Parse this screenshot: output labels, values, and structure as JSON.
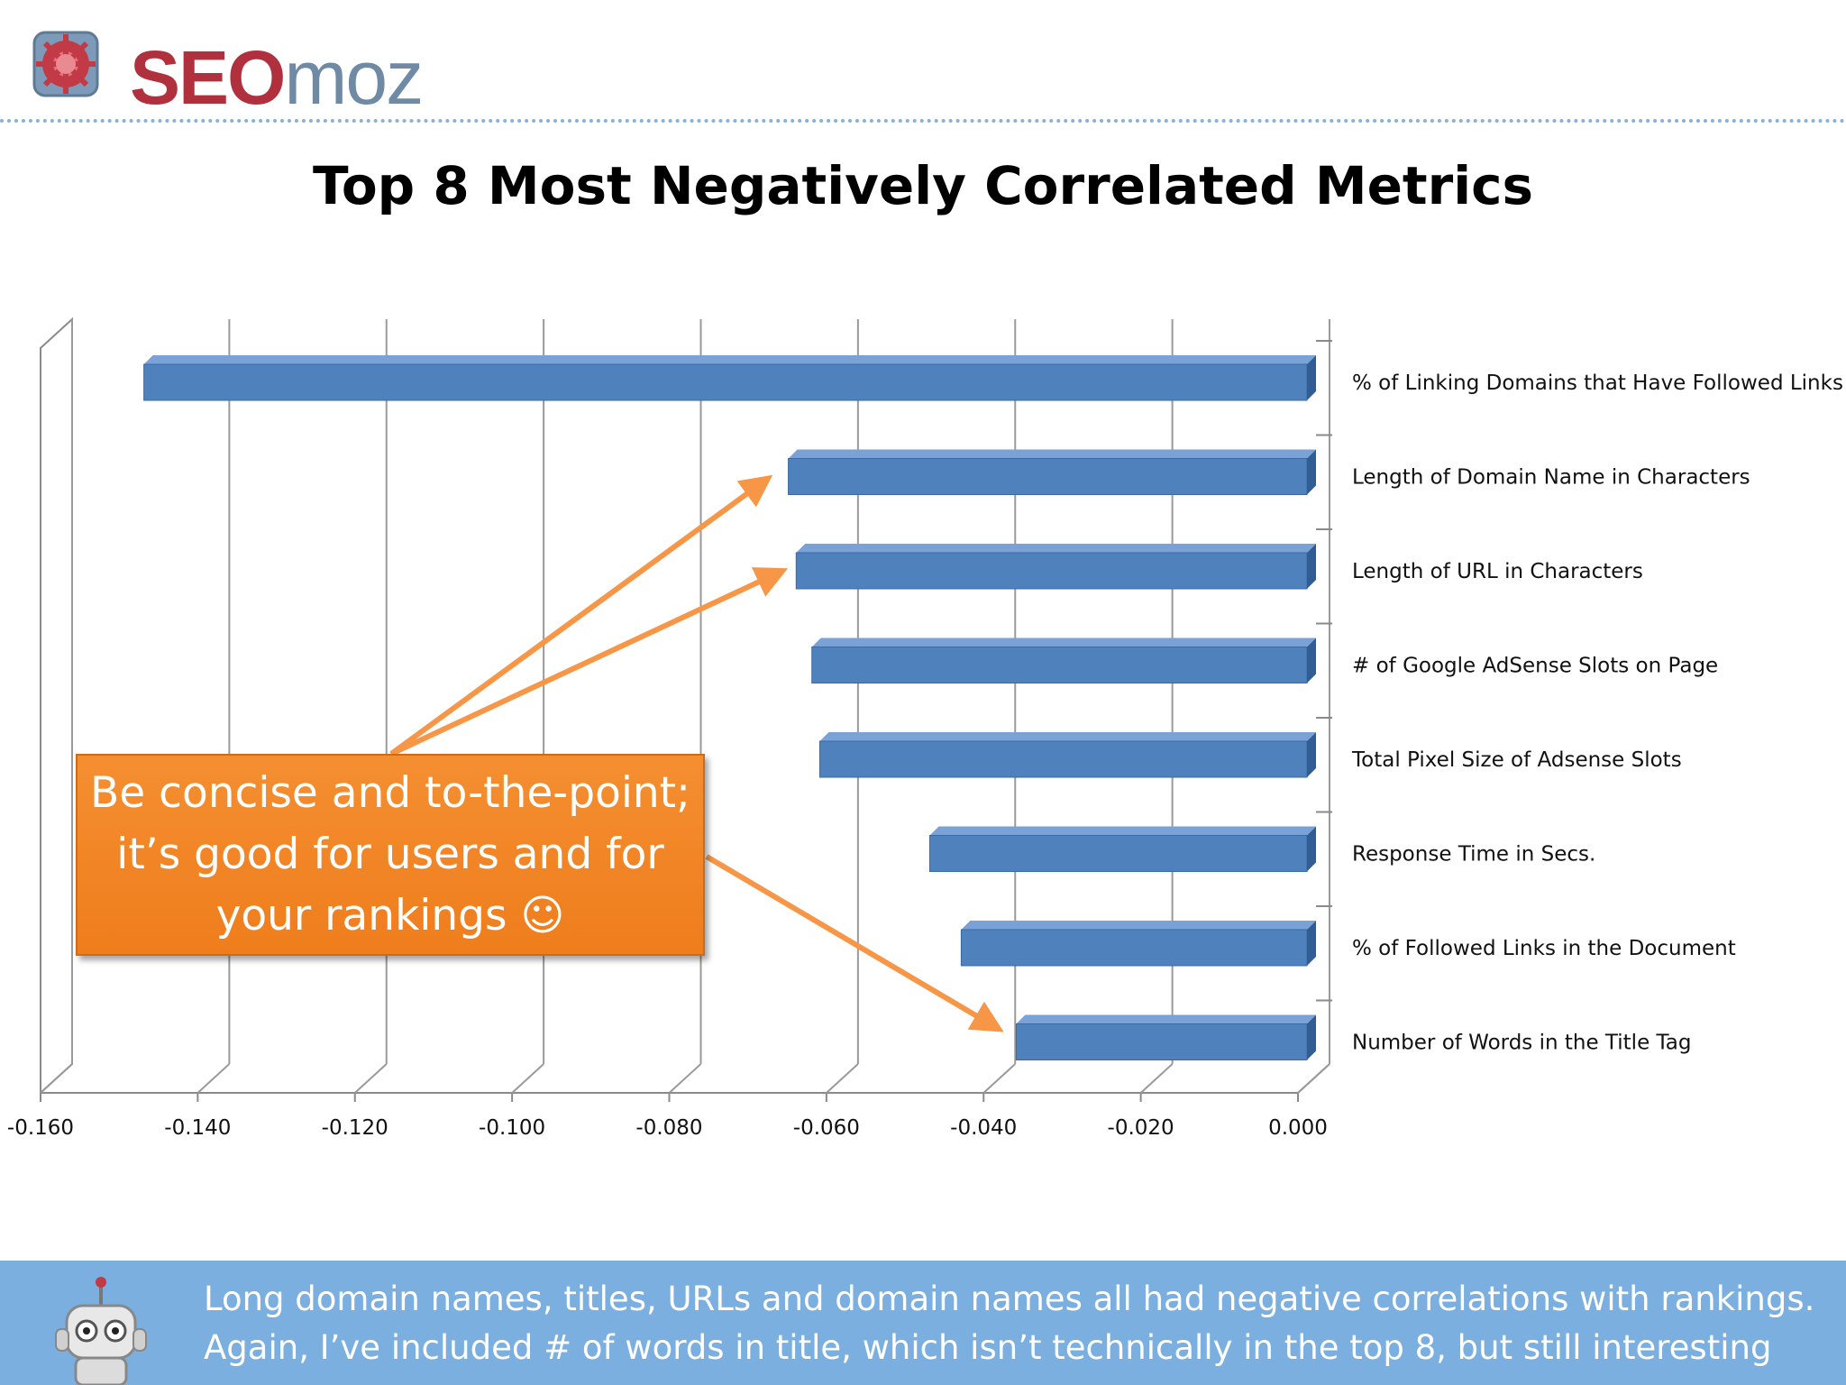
{
  "brand": {
    "seo": "SEO",
    "moz": "moz"
  },
  "slide": {
    "title": "Top 8 Most Negatively Correlated Metrics"
  },
  "callout": {
    "text": "Be concise and to-the-point; it’s good for users and for your rankings ☺"
  },
  "footer": {
    "line1": "Long domain names, titles, URLs and domain names all had negative correlations with rankings.",
    "line2": "Again, I’ve included # of words in title, which isn’t technically in the top 8, but still interesting"
  },
  "colors": {
    "bar": "#4f81bd",
    "callout": "#f48f31",
    "footer": "#7aafe0",
    "arrow": "#f79646"
  },
  "chart_data": {
    "type": "bar",
    "orientation": "horizontal",
    "title": "",
    "xlabel": "",
    "ylabel": "",
    "xlim": [
      -0.16,
      0.0
    ],
    "x_ticks": [
      "-0.160",
      "-0.140",
      "-0.120",
      "-0.100",
      "-0.080",
      "-0.060",
      "-0.040",
      "-0.020",
      "0.000"
    ],
    "x_tick_values": [
      -0.16,
      -0.14,
      -0.12,
      -0.1,
      -0.08,
      -0.06,
      -0.04,
      -0.02,
      0.0
    ],
    "categories": [
      "% of Linking Domains that Have Followed Links",
      "Length of Domain Name in Characters",
      "Length of URL in Characters",
      "# of Google AdSense Slots on Page",
      "Total Pixel Size of Adsense Slots",
      "Response Time in Secs.",
      "% of Followed Links in the Document",
      "Number of Words in the Title Tag"
    ],
    "values": [
      -0.148,
      -0.066,
      -0.065,
      -0.063,
      -0.062,
      -0.048,
      -0.044,
      -0.037
    ],
    "grid": true,
    "style": "3d"
  }
}
